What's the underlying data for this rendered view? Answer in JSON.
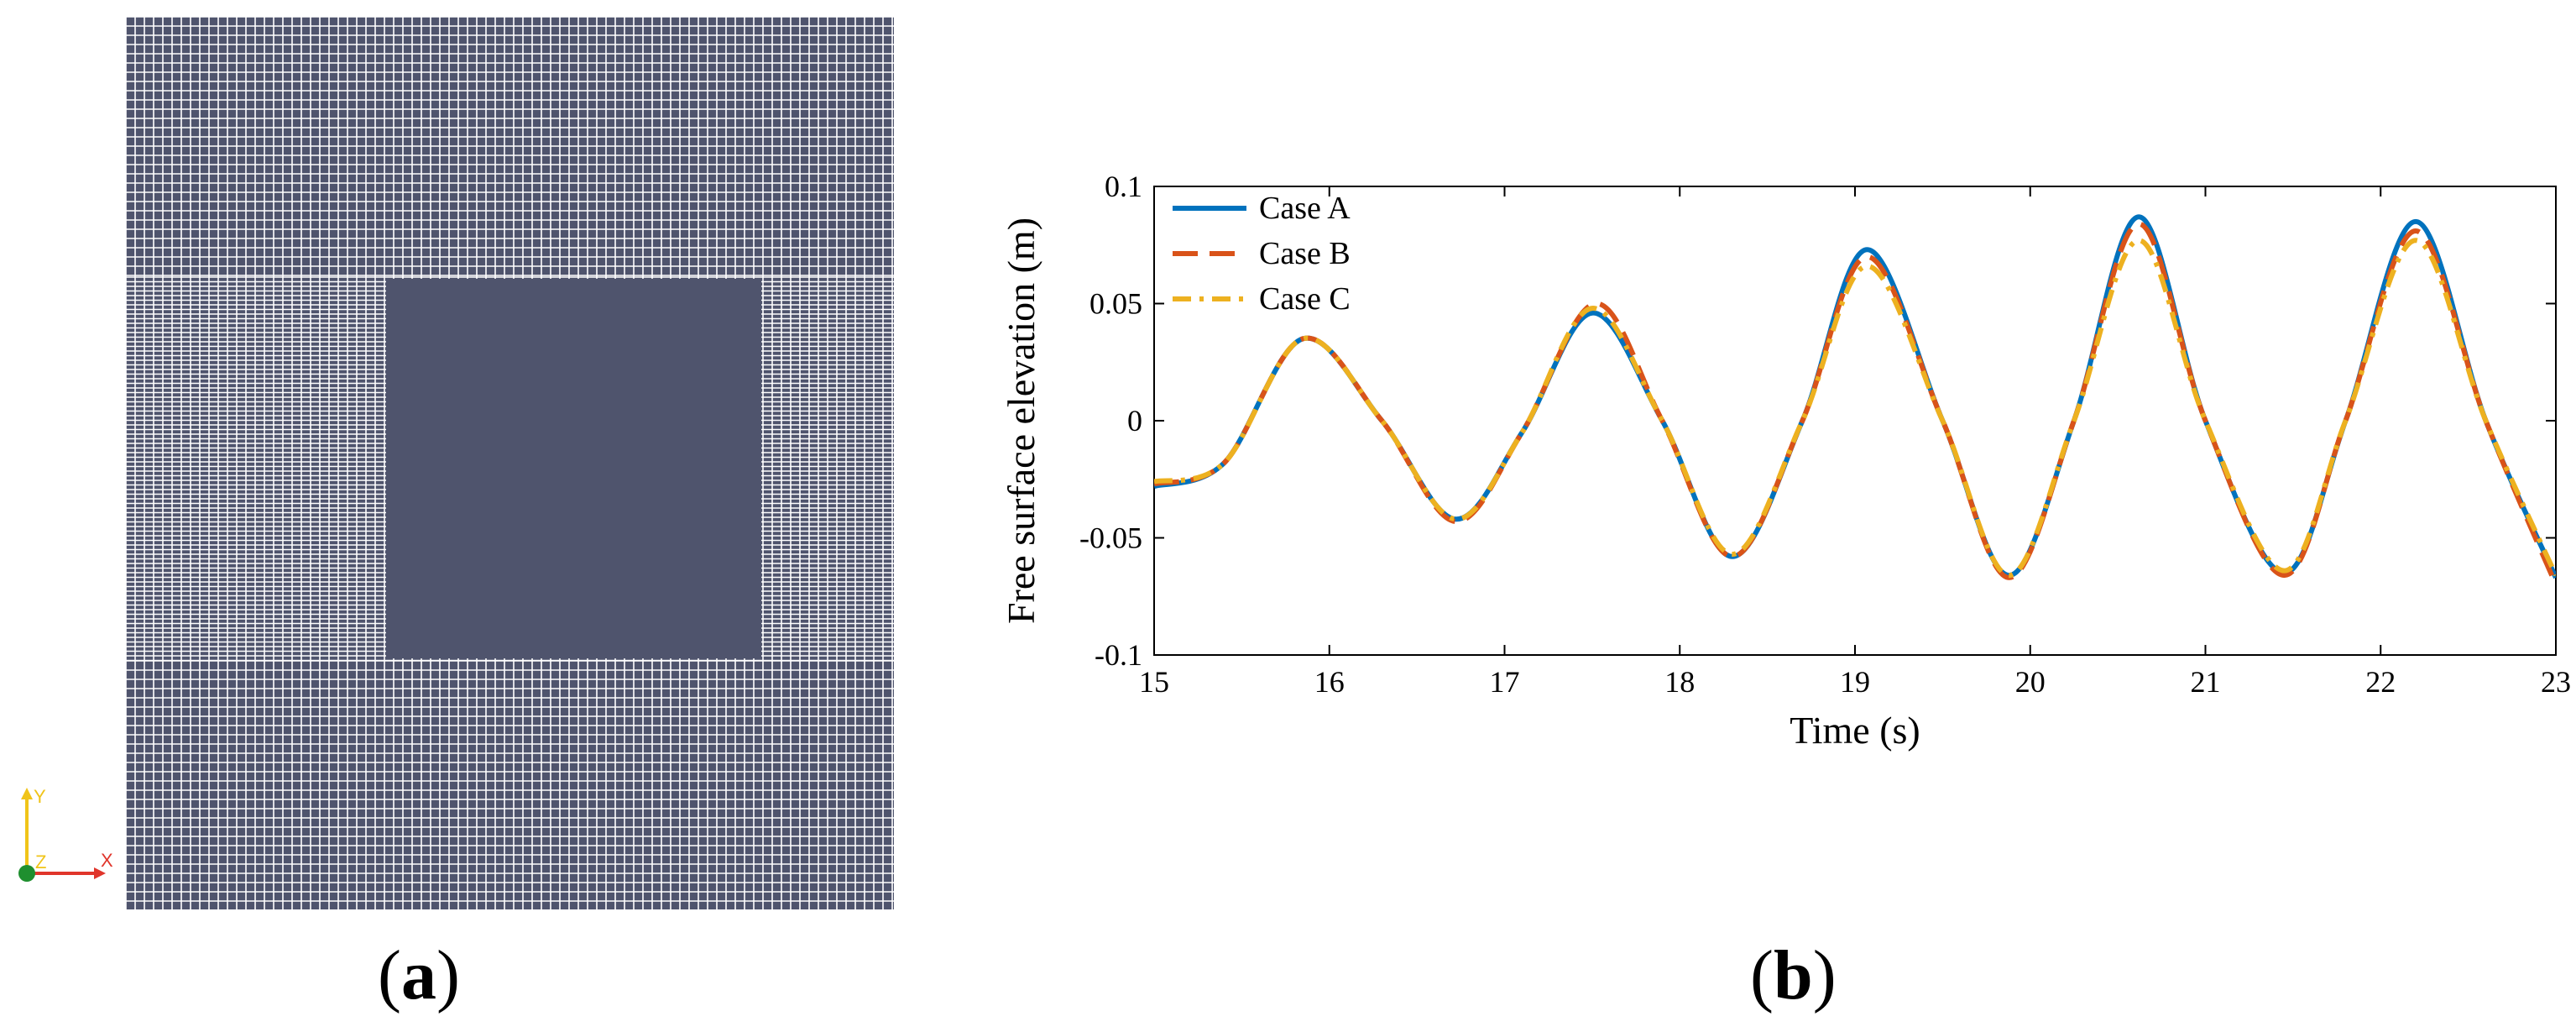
{
  "panels": {
    "a": {
      "label_open": "(",
      "label_letter": "a",
      "label_close": ")"
    },
    "b": {
      "label_open": "(",
      "label_letter": "b",
      "label_close": ")"
    }
  },
  "mesh": {
    "background_color": "#4f546d",
    "line_color": "#ffffff",
    "block_color": "#4f546d",
    "gizmo": {
      "y_label": "Y",
      "z_label": "Z",
      "x_label": "X",
      "x_color": "#e0352b",
      "y_color": "#f0c419",
      "origin_color": "#1f8f2f"
    }
  },
  "chart_data": {
    "type": "line",
    "title": "",
    "xlabel": "Time (s)",
    "ylabel": "Free surface elevation (m)",
    "xlim": [
      15,
      23
    ],
    "ylim": [
      -0.1,
      0.1
    ],
    "xticks": [
      15,
      16,
      17,
      18,
      19,
      20,
      21,
      22,
      23
    ],
    "xtick_labels": [
      "15",
      "16",
      "17",
      "18",
      "19",
      "20",
      "21",
      "22",
      "23"
    ],
    "yticks": [
      -0.1,
      -0.05,
      0,
      0.05,
      0.1
    ],
    "ytick_labels": [
      "-0.1",
      "-0.05",
      "0",
      "0.05",
      "0.1"
    ],
    "grid": false,
    "legend_position": "top-left",
    "series": [
      {
        "name": "Case A",
        "color": "#0072bd",
        "style": "solid",
        "points": [
          [
            15.0,
            -0.028
          ],
          [
            15.4,
            -0.018
          ],
          [
            15.85,
            0.035
          ],
          [
            16.3,
            0.0
          ],
          [
            16.72,
            -0.042
          ],
          [
            17.1,
            -0.005
          ],
          [
            17.5,
            0.046
          ],
          [
            17.9,
            0.0
          ],
          [
            18.3,
            -0.058
          ],
          [
            18.7,
            0.0
          ],
          [
            19.07,
            0.073
          ],
          [
            19.5,
            0.0
          ],
          [
            19.88,
            -0.066
          ],
          [
            20.25,
            0.0
          ],
          [
            20.62,
            0.087
          ],
          [
            21.0,
            0.0
          ],
          [
            21.45,
            -0.065
          ],
          [
            21.8,
            0.0
          ],
          [
            22.2,
            0.085
          ],
          [
            22.6,
            0.0
          ],
          [
            23.0,
            -0.067
          ]
        ]
      },
      {
        "name": "Case B",
        "color": "#d95319",
        "style": "dashed",
        "points": [
          [
            15.0,
            -0.027
          ],
          [
            15.4,
            -0.018
          ],
          [
            15.85,
            0.035
          ],
          [
            16.3,
            0.0
          ],
          [
            16.72,
            -0.043
          ],
          [
            17.1,
            -0.005
          ],
          [
            17.52,
            0.05
          ],
          [
            17.9,
            0.0
          ],
          [
            18.3,
            -0.058
          ],
          [
            18.7,
            0.0
          ],
          [
            19.07,
            0.07
          ],
          [
            19.5,
            0.0
          ],
          [
            19.88,
            -0.067
          ],
          [
            20.25,
            0.0
          ],
          [
            20.62,
            0.084
          ],
          [
            21.0,
            0.0
          ],
          [
            21.45,
            -0.066
          ],
          [
            21.8,
            0.0
          ],
          [
            22.2,
            0.081
          ],
          [
            22.6,
            0.0
          ],
          [
            23.0,
            -0.07
          ]
        ]
      },
      {
        "name": "Case C",
        "color": "#edb120",
        "style": "dashdot",
        "points": [
          [
            15.0,
            -0.026
          ],
          [
            15.4,
            -0.018
          ],
          [
            15.85,
            0.035
          ],
          [
            16.3,
            0.0
          ],
          [
            16.72,
            -0.042
          ],
          [
            17.1,
            -0.005
          ],
          [
            17.5,
            0.048
          ],
          [
            17.9,
            0.0
          ],
          [
            18.3,
            -0.057
          ],
          [
            18.7,
            0.0
          ],
          [
            19.07,
            0.066
          ],
          [
            19.5,
            0.0
          ],
          [
            19.88,
            -0.066
          ],
          [
            20.25,
            0.0
          ],
          [
            20.62,
            0.077
          ],
          [
            21.0,
            0.0
          ],
          [
            21.45,
            -0.064
          ],
          [
            21.8,
            0.0
          ],
          [
            22.2,
            0.077
          ],
          [
            22.6,
            0.0
          ],
          [
            23.0,
            -0.066
          ]
        ]
      }
    ]
  }
}
